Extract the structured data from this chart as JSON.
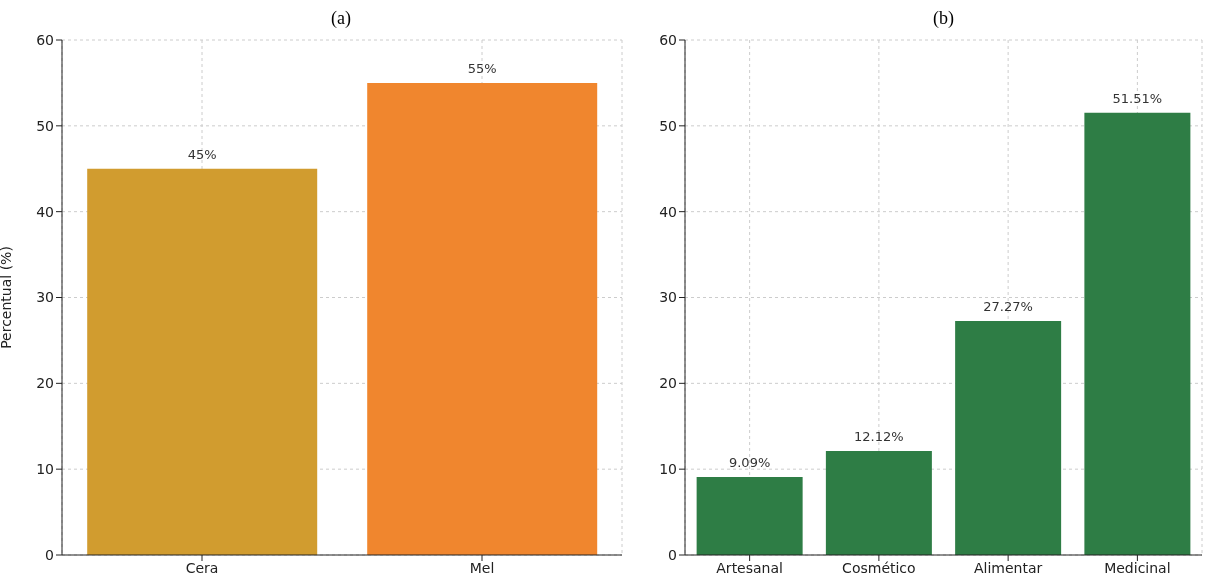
{
  "chart_data": [
    {
      "type": "bar",
      "title": "(a)",
      "ylabel": "Percentual (%)",
      "categories": [
        "Cera",
        "Mel"
      ],
      "values": [
        45,
        55
      ],
      "colors": [
        "#d19c2f",
        "#f0862e"
      ],
      "value_labels": [
        "45%",
        "55%"
      ],
      "ylim": [
        0,
        60
      ],
      "yticks": [
        0,
        10,
        20,
        30,
        40,
        50,
        60
      ],
      "grid": true
    },
    {
      "type": "bar",
      "title": "(b)",
      "categories": [
        "Artesanal",
        "Cosmético",
        "Alimentar",
        "Medicinal"
      ],
      "values": [
        9.09,
        12.12,
        27.27,
        51.51
      ],
      "color": "#2e7d45",
      "value_labels": [
        "9.09%",
        "12.12%",
        "27.27%",
        "51.51%"
      ],
      "ylim": [
        0,
        60
      ],
      "yticks": [
        0,
        10,
        20,
        30,
        40,
        50,
        60
      ],
      "grid": true
    }
  ]
}
